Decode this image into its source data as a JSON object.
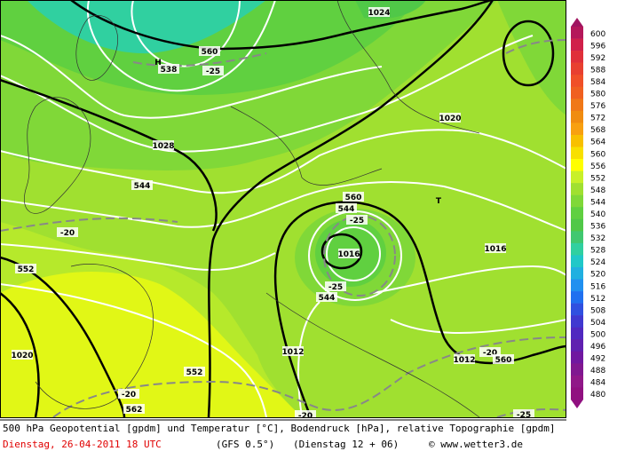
{
  "map_labels": [
    "560",
    "1024",
    "-25",
    "538",
    "H",
    "1020",
    "1028",
    "544",
    "-20",
    "552",
    "560",
    "544",
    "-25",
    "1016",
    "-25",
    "544",
    "T",
    "1016",
    "1012",
    "-20",
    "1012",
    "560",
    "1020",
    "-20",
    "552",
    "562",
    "-20",
    "-25"
  ],
  "colorbar": {
    "values": [
      600,
      596,
      592,
      588,
      584,
      580,
      576,
      572,
      568,
      564,
      560,
      556,
      552,
      548,
      544,
      540,
      536,
      532,
      528,
      524,
      520,
      516,
      512,
      508,
      504,
      500,
      496,
      492,
      488,
      484,
      480
    ],
    "colors": [
      "#b4185a",
      "#d0204a",
      "#e0303a",
      "#e84030",
      "#f05028",
      "#f06020",
      "#f07818",
      "#f08c10",
      "#f8a010",
      "#f8c000",
      "#f8e000",
      "#ffff00",
      "#c8f028",
      "#a0e030",
      "#80d838",
      "#60d040",
      "#50c848",
      "#40c870",
      "#30d0a0",
      "#20c8c8",
      "#20b0e0",
      "#2090f0",
      "#2070f0",
      "#3050e0",
      "#4038d0",
      "#5028c0",
      "#6020b0",
      "#7018a0",
      "#801890",
      "#901888",
      "#901080"
    ]
  },
  "footer": {
    "description": "500 hPa Geopotential [gpdm] und Temperatur [°C], Bodendruck [hPa], relative Topographie [gpdm]",
    "date": "Dienstag, 26-04-2011  18 UTC",
    "model": "(GFS 0.5°)",
    "run": "(Dienstag 12 + 06)",
    "source": "© www.wetter3.de"
  }
}
